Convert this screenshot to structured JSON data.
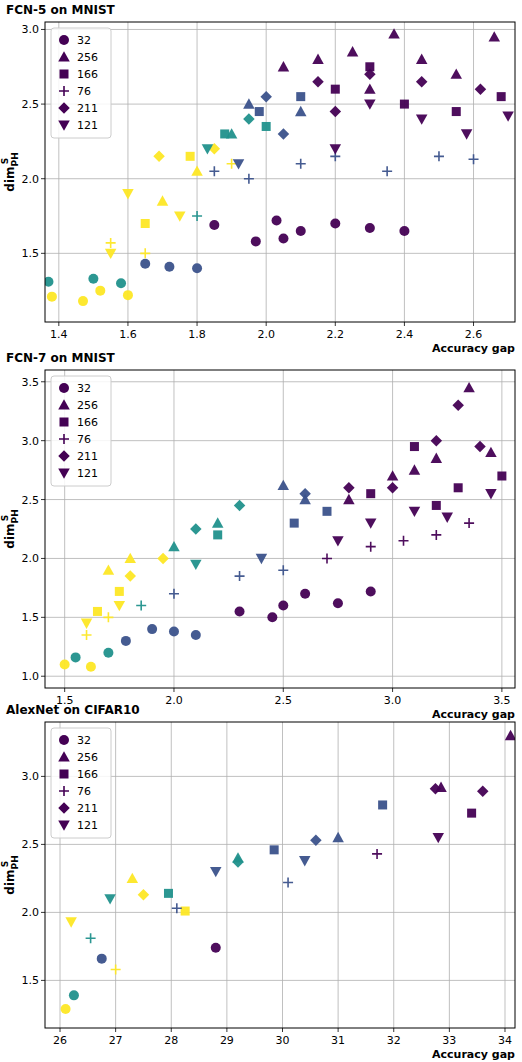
{
  "chart_data": [
    {
      "type": "scatter",
      "title": "FCN-5 on MNIST",
      "x_label": "Accuracy gap",
      "y_label": {
        "text": "dim",
        "sub": "PH",
        "sup": "S"
      },
      "xlim": [
        1.36,
        2.72
      ],
      "ylim": [
        1.04,
        3.05
      ],
      "xticks": [
        1.4,
        1.6,
        1.8,
        {
          "value": 2,
          "label": "2.0"
        },
        2.2,
        2.4,
        2.6
      ],
      "yticks": [
        1.5,
        {
          "value": 2,
          "label": "2.0"
        },
        2.5,
        {
          "value": 3,
          "label": "3.0"
        }
      ],
      "grid": true,
      "legend": "upper-left",
      "series": [
        {
          "name": "32",
          "marker": "circle",
          "color": "#440154",
          "x": [
            1.38,
            1.47,
            1.52,
            1.6,
            1.37,
            1.5,
            1.58,
            1.65,
            1.72,
            1.8,
            1.85,
            1.97,
            2.03,
            2.1,
            2.2,
            2.3,
            2.4,
            2.05
          ],
          "values": [
            1.21,
            1.18,
            1.25,
            1.22,
            1.31,
            1.33,
            1.3,
            1.43,
            1.41,
            1.4,
            1.69,
            1.58,
            1.72,
            1.65,
            1.7,
            1.67,
            1.65,
            1.6
          ],
          "colors": [
            "#fde725",
            "#fde725",
            "#fde725",
            "#fde725",
            "#21918c",
            "#21918c",
            "#21918c",
            "#3b528b",
            "#3b528b",
            "#3b528b",
            "#440154",
            "#440154",
            "#440154",
            "#440154",
            "#440154",
            "#440154",
            "#440154",
            "#440154"
          ]
        },
        {
          "name": "256",
          "marker": "triangle-up",
          "color": "#440154",
          "x": [
            2.05,
            2.15,
            2.25,
            2.37,
            2.45,
            2.55,
            2.66,
            2.3,
            1.95,
            2.1,
            1.9,
            1.8,
            1.7
          ],
          "values": [
            2.75,
            2.8,
            2.85,
            2.97,
            2.8,
            2.7,
            2.95,
            2.6,
            2.5,
            2.45,
            2.3,
            2.05,
            1.85
          ],
          "colors": [
            "#440154",
            "#440154",
            "#440154",
            "#440154",
            "#440154",
            "#440154",
            "#440154",
            "#440154",
            "#3b528b",
            "#3b528b",
            "#21918c",
            "#fde725",
            "#fde725"
          ]
        },
        {
          "name": "166",
          "marker": "square",
          "color": "#440154",
          "x": [
            2.2,
            2.4,
            2.55,
            2.68,
            2.3,
            1.98,
            2.1,
            1.88,
            2.0,
            1.78,
            1.65
          ],
          "values": [
            2.6,
            2.5,
            2.45,
            2.55,
            2.75,
            2.45,
            2.55,
            2.3,
            2.35,
            2.15,
            1.7
          ],
          "colors": [
            "#440154",
            "#440154",
            "#440154",
            "#440154",
            "#440154",
            "#3b528b",
            "#3b528b",
            "#21918c",
            "#21918c",
            "#fde725",
            "#fde725"
          ]
        },
        {
          "name": "76",
          "marker": "plus",
          "color": "#440154",
          "x": [
            1.85,
            1.95,
            2.1,
            2.2,
            2.35,
            2.5,
            2.6,
            1.8,
            1.55,
            1.65,
            1.9
          ],
          "values": [
            2.05,
            2.0,
            2.1,
            2.15,
            2.05,
            2.15,
            2.13,
            1.75,
            1.57,
            1.5,
            2.1
          ],
          "colors": [
            "#3b528b",
            "#3b528b",
            "#3b528b",
            "#3b528b",
            "#3b528b",
            "#3b528b",
            "#3b528b",
            "#21918c",
            "#fde725",
            "#fde725",
            "#fde725"
          ]
        },
        {
          "name": "211",
          "marker": "diamond",
          "color": "#440154",
          "x": [
            2.15,
            2.3,
            2.45,
            2.62,
            2.2,
            2.0,
            2.05,
            1.95,
            1.69,
            1.85
          ],
          "values": [
            2.65,
            2.7,
            2.65,
            2.6,
            2.45,
            2.55,
            2.3,
            2.4,
            2.15,
            2.2
          ],
          "colors": [
            "#440154",
            "#440154",
            "#440154",
            "#440154",
            "#440154",
            "#3b528b",
            "#3b528b",
            "#21918c",
            "#fde725",
            "#fde725"
          ]
        },
        {
          "name": "121",
          "marker": "triangle-down",
          "color": "#440154",
          "x": [
            2.3,
            2.45,
            2.58,
            2.7,
            2.2,
            1.92,
            1.83,
            1.6,
            1.75,
            1.55
          ],
          "values": [
            2.5,
            2.4,
            2.3,
            2.42,
            2.2,
            2.1,
            2.2,
            1.9,
            1.75,
            1.5
          ],
          "colors": [
            "#440154",
            "#440154",
            "#440154",
            "#440154",
            "#440154",
            "#3b528b",
            "#21918c",
            "#fde725",
            "#fde725",
            "#fde725"
          ]
        }
      ]
    },
    {
      "type": "scatter",
      "title": "FCN-7 on MNIST",
      "x_label": "Accuracy gap",
      "y_label": {
        "text": "dim",
        "sub": "PH",
        "sup": "S"
      },
      "xlim": [
        1.41,
        3.56
      ],
      "ylim": [
        0.9,
        3.6
      ],
      "xticks": [
        1.5,
        {
          "value": 2,
          "label": "2.0"
        },
        2.5,
        {
          "value": 3,
          "label": "3.0"
        },
        3.5
      ],
      "yticks": [
        {
          "value": 1,
          "label": "1.0"
        },
        1.5,
        {
          "value": 2,
          "label": "2.0"
        },
        2.5,
        {
          "value": 3,
          "label": "3.0"
        },
        3.5
      ],
      "grid": true,
      "legend": "upper-left",
      "series": [
        {
          "name": "32",
          "marker": "circle",
          "color": "#440154",
          "x": [
            1.5,
            1.62,
            1.55,
            1.7,
            1.78,
            1.9,
            2.0,
            2.1,
            2.3,
            2.5,
            2.6,
            2.75,
            2.9,
            2.45
          ],
          "values": [
            1.1,
            1.08,
            1.16,
            1.2,
            1.3,
            1.4,
            1.38,
            1.35,
            1.55,
            1.6,
            1.7,
            1.62,
            1.72,
            1.5
          ],
          "colors": [
            "#fde725",
            "#fde725",
            "#21918c",
            "#21918c",
            "#3b528b",
            "#3b528b",
            "#3b528b",
            "#3b528b",
            "#440154",
            "#440154",
            "#440154",
            "#440154",
            "#440154",
            "#440154"
          ]
        },
        {
          "name": "256",
          "marker": "triangle-up",
          "color": "#440154",
          "x": [
            3.0,
            3.2,
            3.35,
            3.45,
            2.8,
            3.1,
            2.6,
            2.5,
            2.2,
            2.0,
            1.8,
            1.7
          ],
          "values": [
            2.7,
            2.85,
            3.45,
            2.9,
            2.5,
            2.75,
            2.5,
            2.62,
            2.3,
            2.1,
            2.0,
            1.9
          ],
          "colors": [
            "#440154",
            "#440154",
            "#440154",
            "#440154",
            "#440154",
            "#440154",
            "#3b528b",
            "#3b528b",
            "#21918c",
            "#21918c",
            "#fde725",
            "#fde725"
          ]
        },
        {
          "name": "166",
          "marker": "square",
          "color": "#440154",
          "x": [
            3.1,
            3.3,
            3.5,
            2.9,
            3.2,
            2.55,
            2.7,
            2.2,
            1.75,
            1.65
          ],
          "values": [
            2.95,
            2.6,
            2.7,
            2.55,
            2.45,
            2.3,
            2.4,
            2.2,
            1.72,
            1.55
          ],
          "colors": [
            "#440154",
            "#440154",
            "#440154",
            "#440154",
            "#440154",
            "#3b528b",
            "#3b528b",
            "#21918c",
            "#fde725",
            "#fde725"
          ]
        },
        {
          "name": "76",
          "marker": "plus",
          "color": "#440154",
          "x": [
            2.7,
            2.9,
            3.05,
            3.2,
            3.35,
            2.3,
            2.0,
            2.5,
            1.85,
            1.6,
            1.7
          ],
          "values": [
            2.0,
            2.1,
            2.15,
            2.2,
            2.3,
            1.85,
            1.7,
            1.9,
            1.6,
            1.35,
            1.5
          ],
          "colors": [
            "#440154",
            "#440154",
            "#440154",
            "#440154",
            "#440154",
            "#3b528b",
            "#3b528b",
            "#3b528b",
            "#21918c",
            "#fde725",
            "#fde725"
          ]
        },
        {
          "name": "211",
          "marker": "diamond",
          "color": "#440154",
          "x": [
            3.3,
            3.4,
            3.2,
            3.0,
            2.8,
            2.6,
            2.3,
            2.1,
            1.8,
            1.95
          ],
          "values": [
            3.3,
            2.95,
            3.0,
            2.6,
            2.6,
            2.55,
            2.45,
            2.25,
            1.85,
            2.0
          ],
          "colors": [
            "#440154",
            "#440154",
            "#440154",
            "#440154",
            "#440154",
            "#3b528b",
            "#21918c",
            "#21918c",
            "#fde725",
            "#fde725"
          ]
        },
        {
          "name": "121",
          "marker": "triangle-down",
          "color": "#440154",
          "x": [
            2.9,
            3.1,
            3.25,
            3.45,
            2.75,
            2.4,
            2.1,
            1.6,
            1.75
          ],
          "values": [
            2.3,
            2.4,
            2.35,
            2.55,
            2.15,
            2.0,
            1.95,
            1.45,
            1.6
          ],
          "colors": [
            "#440154",
            "#440154",
            "#440154",
            "#440154",
            "#440154",
            "#3b528b",
            "#21918c",
            "#fde725",
            "#fde725"
          ]
        }
      ]
    },
    {
      "type": "scatter",
      "title": "AlexNet on CIFAR10",
      "x_label": "Accuracy gap",
      "y_label": {
        "text": "dim",
        "sub": "PH",
        "sup": "S"
      },
      "xlim": [
        25.73,
        34.18
      ],
      "ylim": [
        1.15,
        3.4
      ],
      "xticks": [
        26,
        27,
        28,
        29,
        30,
        31,
        32,
        33,
        34
      ],
      "yticks": [
        1.5,
        {
          "value": 2,
          "label": "2.0"
        },
        2.5,
        {
          "value": 3,
          "label": "3.0"
        }
      ],
      "grid": true,
      "legend": "upper-left",
      "series": [
        {
          "name": "32",
          "marker": "circle",
          "color": "#440154",
          "x": [
            26.1,
            26.25,
            26.75,
            28.8
          ],
          "values": [
            1.29,
            1.39,
            1.66,
            1.74
          ],
          "colors": [
            "#fde725",
            "#21918c",
            "#3b528b",
            "#440154"
          ]
        },
        {
          "name": "256",
          "marker": "triangle-up",
          "color": "#440154",
          "x": [
            27.3,
            29.2,
            31.0,
            32.85,
            34.1
          ],
          "values": [
            2.25,
            2.4,
            2.55,
            2.92,
            3.3
          ],
          "colors": [
            "#fde725",
            "#21918c",
            "#3b528b",
            "#440154",
            "#440154"
          ]
        },
        {
          "name": "166",
          "marker": "square",
          "color": "#440154",
          "x": [
            27.95,
            28.25,
            29.85,
            31.8,
            33.4
          ],
          "values": [
            2.14,
            2.01,
            2.46,
            2.79,
            2.73
          ],
          "colors": [
            "#21918c",
            "#fde725",
            "#3b528b",
            "#3b528b",
            "#440154"
          ]
        },
        {
          "name": "76",
          "marker": "plus",
          "color": "#440154",
          "x": [
            26.55,
            27.0,
            28.1,
            30.1,
            31.7
          ],
          "values": [
            1.81,
            1.58,
            2.03,
            2.22,
            2.43
          ],
          "colors": [
            "#21918c",
            "#fde725",
            "#3b528b",
            "#3b528b",
            "#440154"
          ]
        },
        {
          "name": "211",
          "marker": "diamond",
          "color": "#440154",
          "x": [
            27.5,
            29.2,
            30.6,
            32.75,
            33.6
          ],
          "values": [
            2.13,
            2.37,
            2.53,
            2.91,
            2.89
          ],
          "colors": [
            "#fde725",
            "#21918c",
            "#3b528b",
            "#440154",
            "#440154"
          ]
        },
        {
          "name": "121",
          "marker": "triangle-down",
          "color": "#440154",
          "x": [
            26.2,
            26.9,
            28.8,
            30.4,
            32.8
          ],
          "values": [
            1.93,
            2.1,
            2.3,
            2.38,
            2.55
          ],
          "colors": [
            "#fde725",
            "#21918c",
            "#3b528b",
            "#3b528b",
            "#440154"
          ]
        }
      ]
    }
  ]
}
